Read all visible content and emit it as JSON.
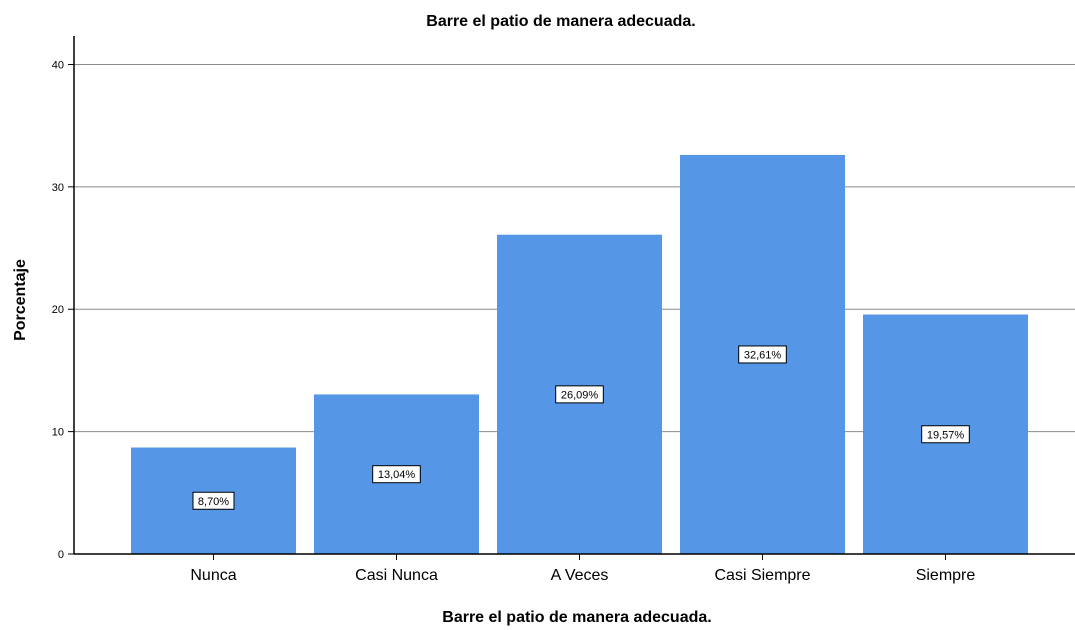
{
  "chart_data": {
    "type": "bar",
    "title": "Barre el patio de manera adecuada.",
    "xlabel": "Barre el patio de manera adecuada.",
    "ylabel": "Porcentaje",
    "categories": [
      "Nunca",
      "Casi Nunca",
      "A Veces",
      "Casi Siempre",
      "Siempre"
    ],
    "values": [
      8.7,
      13.04,
      26.09,
      32.61,
      19.57
    ],
    "data_labels": [
      "8,70%",
      "13,04%",
      "26,09%",
      "32,61%",
      "19,57%"
    ],
    "ylim": [
      0,
      42
    ],
    "yticks": [
      0,
      10,
      20,
      30,
      40
    ],
    "grid": true,
    "legend": "none",
    "bar_color": "#5596e6"
  }
}
